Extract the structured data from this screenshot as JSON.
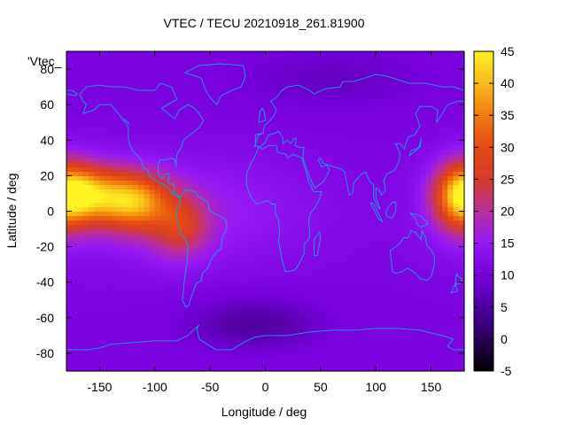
{
  "chart_data": {
    "type": "heatmap",
    "title": "VTEC / TECU 20210918_261.81900",
    "xlabel": "Longitude / deg",
    "ylabel": "Latitude / deg",
    "key_label": "'Vtec_",
    "xlim": [
      -180,
      180
    ],
    "ylim": [
      -90,
      90
    ],
    "x_ticks": [
      -150,
      -100,
      -50,
      0,
      50,
      100,
      150
    ],
    "y_ticks": [
      -80,
      -60,
      -40,
      -20,
      0,
      20,
      40,
      60,
      80
    ],
    "colorbar": {
      "range": [
        -5,
        45
      ],
      "ticks": [
        -5,
        0,
        5,
        10,
        15,
        20,
        25,
        30,
        35,
        40,
        45
      ]
    },
    "background_value": 11,
    "features": [
      {
        "name": "crest-pacific-west",
        "lon": -166,
        "lat": 10,
        "sigma_lon": 22,
        "sigma_lat": 11,
        "amp": 26
      },
      {
        "name": "crest-pacific-east",
        "lon": -120,
        "lat": 6,
        "sigma_lon": 22,
        "sigma_lat": 11,
        "amp": 25
      },
      {
        "name": "crest-south-america",
        "lon": -78,
        "lat": -8,
        "sigma_lon": 18,
        "sigma_lat": 12,
        "amp": 12
      },
      {
        "name": "crest-date-line",
        "lon": 175,
        "lat": 8,
        "sigma_lon": 16,
        "sigma_lat": 14,
        "amp": 17
      },
      {
        "name": "equatorial-band",
        "lon": -80,
        "lat": 0,
        "sigma_lon": 90,
        "sigma_lat": 22,
        "amp": 5
      },
      {
        "name": "southern-trough",
        "lon": -10,
        "lat": -63,
        "sigma_lon": 40,
        "sigma_lat": 10,
        "amp": -6
      },
      {
        "name": "northern-trough",
        "lon": 60,
        "lat": 75,
        "sigma_lon": 60,
        "sigma_lat": 12,
        "amp": -3
      }
    ],
    "colors": {
      "border": "#000000",
      "coastline": "#1a9fe6"
    }
  }
}
